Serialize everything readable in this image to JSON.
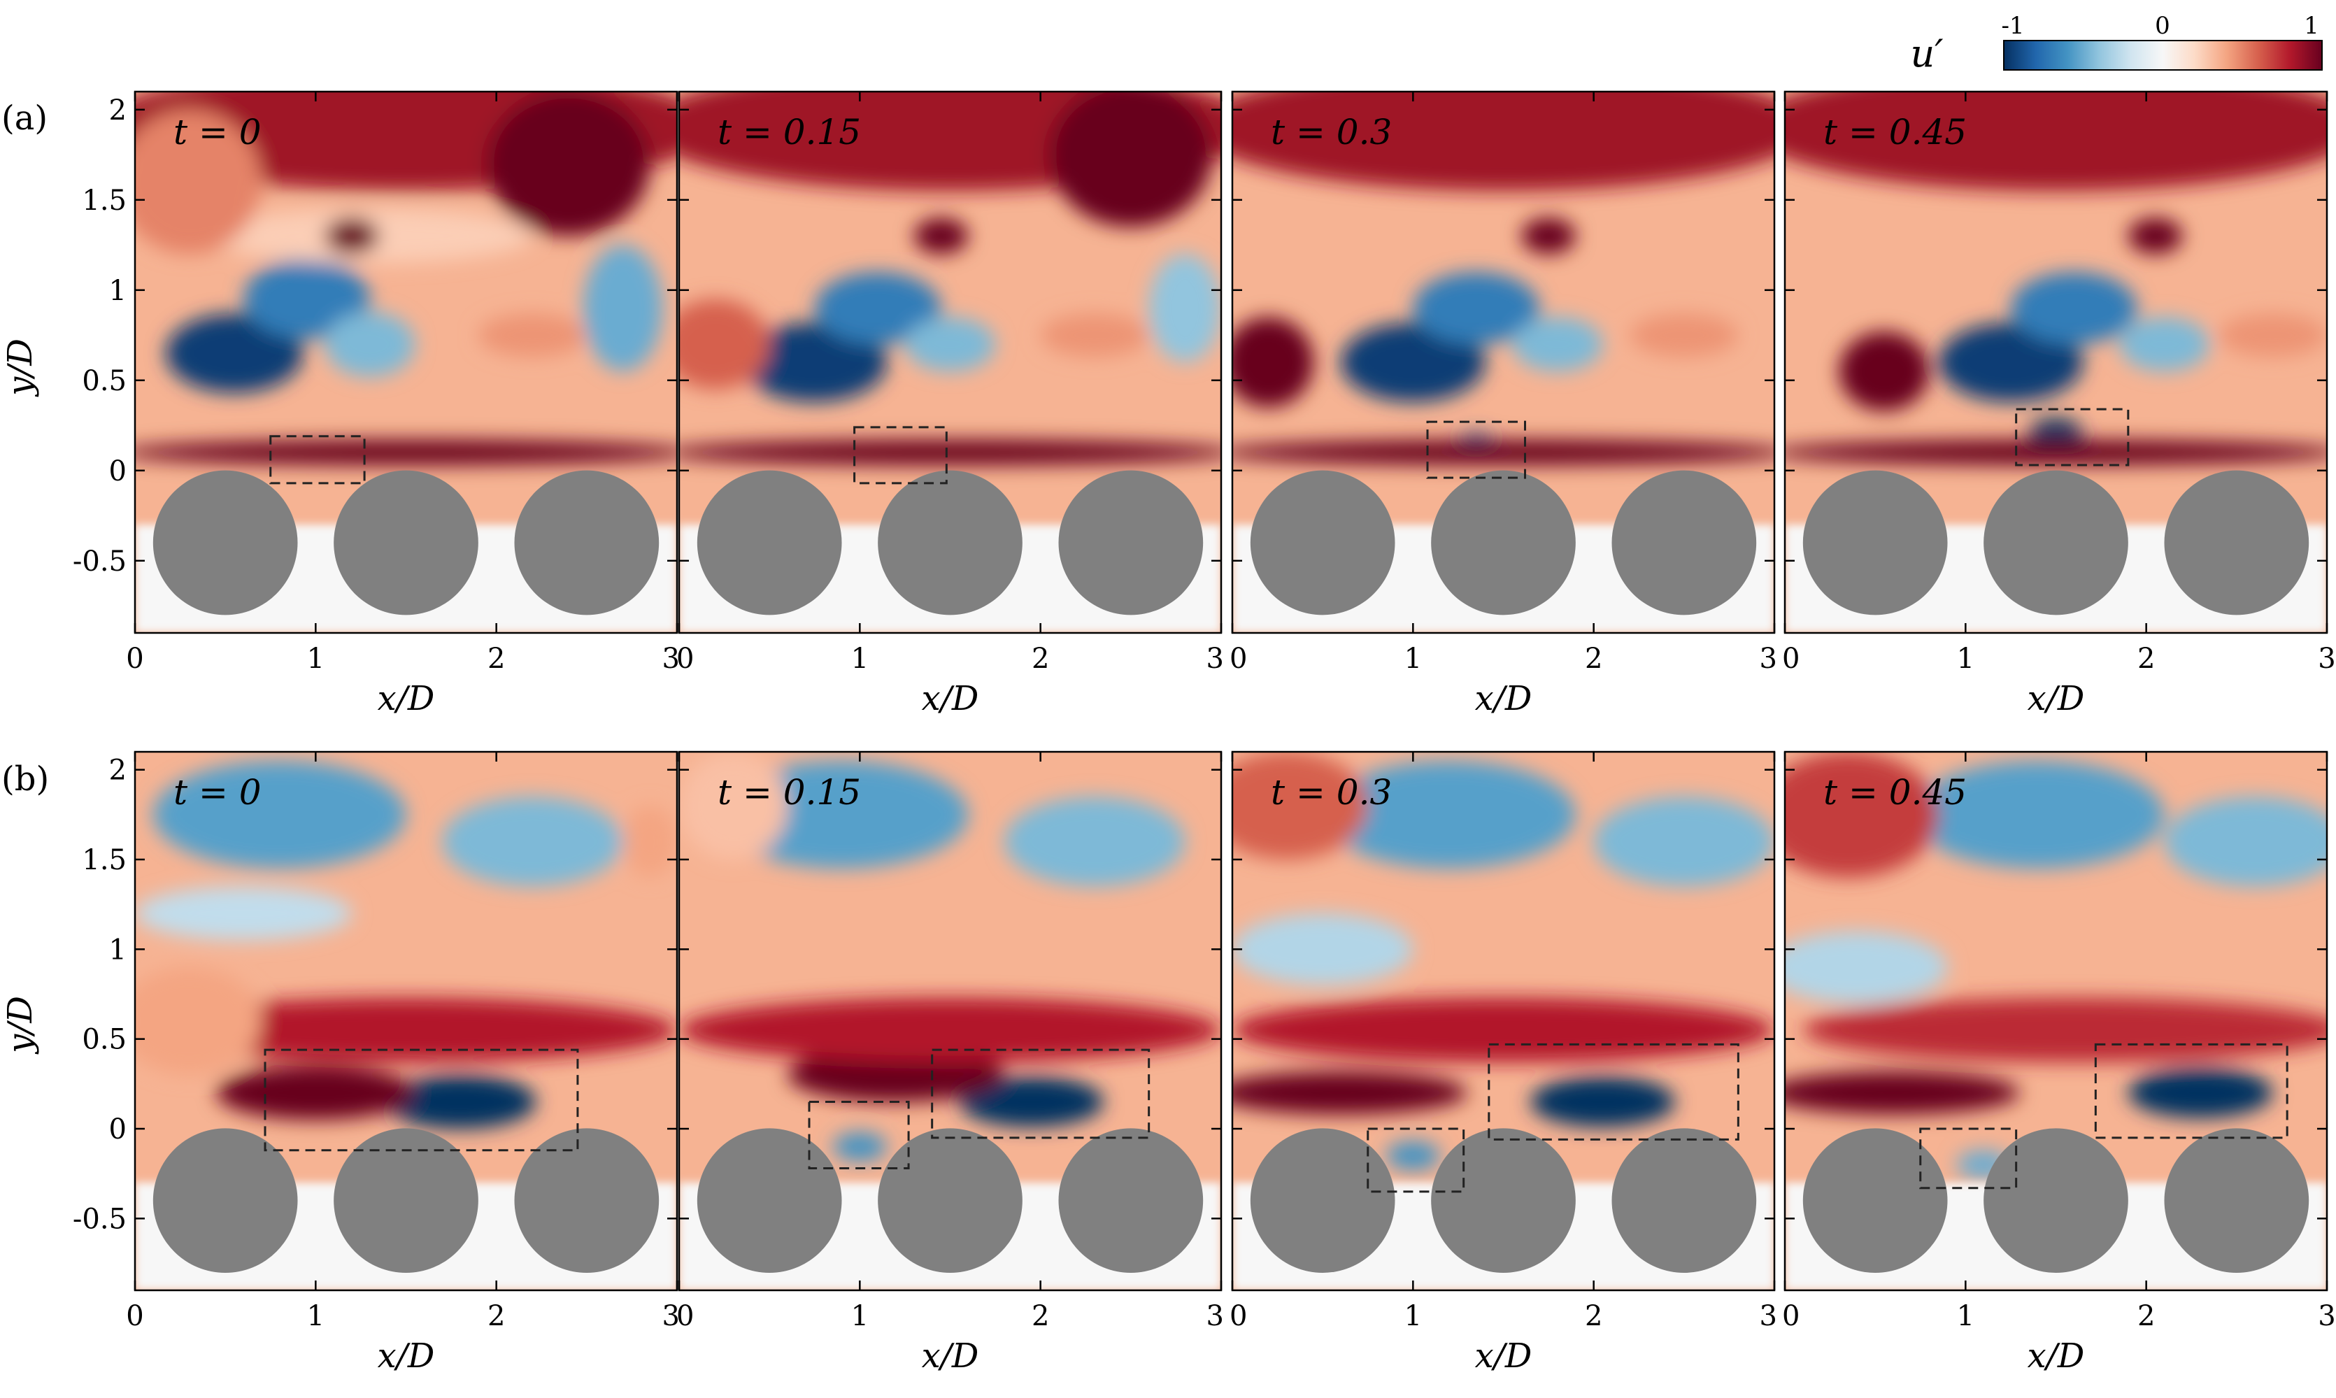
{
  "chart_data": {
    "type": "heatmap",
    "quantity_label": "u′",
    "colorbar": {
      "label": "u′",
      "range": [
        -1,
        1
      ],
      "ticks": [
        -1,
        0,
        1
      ],
      "tick_labels": [
        "-1",
        "0",
        "1"
      ],
      "colormap": [
        "#053061",
        "#2166ac",
        "#4393c3",
        "#92c5de",
        "#d1e5f0",
        "#f7f7f7",
        "#fddbc7",
        "#f4a582",
        "#d6604d",
        "#b2182b",
        "#67001f"
      ]
    },
    "x_axis": {
      "label": "x/D",
      "range": [
        0,
        3
      ],
      "ticks": [
        0,
        1,
        2,
        3
      ],
      "tick_labels": [
        "0",
        "1",
        "2",
        "3"
      ]
    },
    "y_axis": {
      "label": "y/D",
      "range": [
        -0.9,
        2.1
      ],
      "ticks": [
        -0.5,
        0,
        0.5,
        1,
        1.5,
        2
      ],
      "tick_labels": [
        "-0.5",
        "0",
        "0.5",
        "1",
        "1.5",
        "2"
      ]
    },
    "cylinders": {
      "centers_x": [
        0.5,
        1.5,
        2.5
      ],
      "center_y": -0.4,
      "radius": 0.4,
      "color": "#808080"
    },
    "rows": [
      {
        "label": "(a)",
        "panels": [
          {
            "time_label": "t = 0",
            "features": [
              {
                "x": 0.55,
                "y": 0.65,
                "rx": 0.38,
                "ry": 0.22,
                "u": -0.95
              },
              {
                "x": 0.95,
                "y": 0.95,
                "rx": 0.35,
                "ry": 0.22,
                "u": -0.7
              },
              {
                "x": 1.3,
                "y": 0.7,
                "rx": 0.25,
                "ry": 0.18,
                "u": -0.45
              },
              {
                "x": 2.7,
                "y": 0.9,
                "rx": 0.22,
                "ry": 0.35,
                "u": -0.5
              },
              {
                "x": 2.2,
                "y": 0.75,
                "rx": 0.3,
                "ry": 0.12,
                "u": 0.45
              },
              {
                "x": 1.3,
                "y": 1.3,
                "rx": 0.9,
                "ry": 0.15,
                "u": 0.25
              },
              {
                "x": 1.5,
                "y": 0.1,
                "rx": 1.6,
                "ry": 0.07,
                "u": 1.0
              },
              {
                "x": 1.5,
                "y": 1.9,
                "rx": 1.7,
                "ry": 0.35,
                "u": 0.85
              },
              {
                "x": 2.4,
                "y": 1.7,
                "rx": 0.45,
                "ry": 0.4,
                "u": 1.0
              },
              {
                "x": 1.2,
                "y": 1.3,
                "rx": 0.15,
                "ry": 0.1,
                "u": 1.0
              },
              {
                "x": 0.3,
                "y": 1.6,
                "rx": 0.4,
                "ry": 0.4,
                "u": 0.5
              }
            ],
            "box": {
              "x": [
                0.75,
                1.27
              ],
              "y": [
                -0.07,
                0.19
              ]
            }
          },
          {
            "time_label": "t = 0.15",
            "features": [
              {
                "x": 0.75,
                "y": 0.6,
                "rx": 0.4,
                "ry": 0.22,
                "u": -0.95
              },
              {
                "x": 1.1,
                "y": 0.9,
                "rx": 0.35,
                "ry": 0.2,
                "u": -0.7
              },
              {
                "x": 1.5,
                "y": 0.7,
                "rx": 0.25,
                "ry": 0.15,
                "u": -0.45
              },
              {
                "x": 2.8,
                "y": 0.9,
                "rx": 0.2,
                "ry": 0.3,
                "u": -0.4
              },
              {
                "x": 2.3,
                "y": 0.75,
                "rx": 0.3,
                "ry": 0.12,
                "u": 0.45
              },
              {
                "x": 1.5,
                "y": 0.1,
                "rx": 1.6,
                "ry": 0.07,
                "u": 1.0
              },
              {
                "x": 1.5,
                "y": 1.9,
                "rx": 1.7,
                "ry": 0.35,
                "u": 0.85
              },
              {
                "x": 2.5,
                "y": 1.75,
                "rx": 0.45,
                "ry": 0.4,
                "u": 1.0
              },
              {
                "x": 1.45,
                "y": 1.3,
                "rx": 0.15,
                "ry": 0.1,
                "u": 1.0
              },
              {
                "x": 0.2,
                "y": 0.7,
                "rx": 0.3,
                "ry": 0.25,
                "u": 0.6
              }
            ],
            "box": {
              "x": [
                0.97,
                1.48
              ],
              "y": [
                -0.07,
                0.24
              ]
            }
          },
          {
            "time_label": "t = 0.3",
            "features": [
              {
                "x": 1.0,
                "y": 0.6,
                "rx": 0.4,
                "ry": 0.22,
                "u": -0.95
              },
              {
                "x": 1.35,
                "y": 0.9,
                "rx": 0.35,
                "ry": 0.2,
                "u": -0.7
              },
              {
                "x": 1.35,
                "y": 0.12,
                "rx": 0.12,
                "ry": 0.09,
                "u": -0.9
              },
              {
                "x": 1.8,
                "y": 0.7,
                "rx": 0.25,
                "ry": 0.15,
                "u": -0.45
              },
              {
                "x": 2.5,
                "y": 0.75,
                "rx": 0.3,
                "ry": 0.12,
                "u": 0.45
              },
              {
                "x": 1.5,
                "y": 0.1,
                "rx": 1.6,
                "ry": 0.07,
                "u": 1.0
              },
              {
                "x": 1.5,
                "y": 1.9,
                "rx": 1.7,
                "ry": 0.35,
                "u": 0.85
              },
              {
                "x": 1.75,
                "y": 1.3,
                "rx": 0.15,
                "ry": 0.1,
                "u": 1.0
              },
              {
                "x": 0.2,
                "y": 0.6,
                "rx": 0.25,
                "ry": 0.25,
                "u": 1.0
              }
            ],
            "box": {
              "x": [
                1.08,
                1.62
              ],
              "y": [
                -0.04,
                0.27
              ]
            }
          },
          {
            "time_label": "t = 0.45",
            "features": [
              {
                "x": 1.25,
                "y": 0.6,
                "rx": 0.4,
                "ry": 0.22,
                "u": -0.95
              },
              {
                "x": 1.6,
                "y": 0.9,
                "rx": 0.35,
                "ry": 0.2,
                "u": -0.7
              },
              {
                "x": 1.5,
                "y": 0.2,
                "rx": 0.15,
                "ry": 0.09,
                "u": -1.0
              },
              {
                "x": 2.1,
                "y": 0.7,
                "rx": 0.25,
                "ry": 0.15,
                "u": -0.45
              },
              {
                "x": 2.7,
                "y": 0.75,
                "rx": 0.3,
                "ry": 0.12,
                "u": 0.45
              },
              {
                "x": 1.5,
                "y": 0.1,
                "rx": 1.6,
                "ry": 0.07,
                "u": 1.0
              },
              {
                "x": 1.5,
                "y": 1.9,
                "rx": 1.7,
                "ry": 0.35,
                "u": 0.85
              },
              {
                "x": 2.05,
                "y": 1.3,
                "rx": 0.15,
                "ry": 0.1,
                "u": 1.0
              },
              {
                "x": 0.55,
                "y": 0.55,
                "rx": 0.25,
                "ry": 0.22,
                "u": 1.0
              }
            ],
            "box": {
              "x": [
                1.28,
                1.9
              ],
              "y": [
                0.03,
                0.34
              ]
            }
          }
        ]
      },
      {
        "label": "(b)",
        "panels": [
          {
            "time_label": "t = 0",
            "features": [
              {
                "x": 0.8,
                "y": 1.75,
                "rx": 0.7,
                "ry": 0.3,
                "u": -0.55
              },
              {
                "x": 2.2,
                "y": 1.6,
                "rx": 0.5,
                "ry": 0.25,
                "u": -0.45
              },
              {
                "x": 0.6,
                "y": 1.2,
                "rx": 0.6,
                "ry": 0.15,
                "u": -0.25
              },
              {
                "x": 1.8,
                "y": 0.15,
                "rx": 0.42,
                "ry": 0.15,
                "u": -1.0
              },
              {
                "x": 1.0,
                "y": 0.2,
                "rx": 0.55,
                "ry": 0.15,
                "u": 1.0
              },
              {
                "x": 1.5,
                "y": 0.55,
                "rx": 1.5,
                "ry": 0.18,
                "u": 0.8
              },
              {
                "x": 2.85,
                "y": 1.6,
                "rx": 0.15,
                "ry": 0.2,
                "u": 0.4
              },
              {
                "x": 0.3,
                "y": 0.6,
                "rx": 0.4,
                "ry": 0.3,
                "u": 0.4
              }
            ],
            "boxes": [
              {
                "x": [
                  0.72,
                  2.45
                ],
                "y": [
                  -0.12,
                  0.44
                ]
              }
            ]
          },
          {
            "time_label": "t = 0.15",
            "features": [
              {
                "x": 0.9,
                "y": 1.75,
                "rx": 0.7,
                "ry": 0.3,
                "u": -0.55
              },
              {
                "x": 2.3,
                "y": 1.6,
                "rx": 0.5,
                "ry": 0.25,
                "u": -0.45
              },
              {
                "x": 1.0,
                "y": -0.1,
                "rx": 0.15,
                "ry": 0.08,
                "u": -0.6
              },
              {
                "x": 1.95,
                "y": 0.15,
                "rx": 0.4,
                "ry": 0.14,
                "u": -1.0
              },
              {
                "x": 1.2,
                "y": 0.3,
                "rx": 0.6,
                "ry": 0.15,
                "u": 1.0
              },
              {
                "x": 1.5,
                "y": 0.55,
                "rx": 1.5,
                "ry": 0.18,
                "u": 0.8
              },
              {
                "x": 0.3,
                "y": 1.8,
                "rx": 0.3,
                "ry": 0.3,
                "u": 0.3
              }
            ],
            "boxes": [
              {
                "x": [
                  0.72,
                  1.27
                ],
                "y": [
                  -0.22,
                  0.15
                ]
              },
              {
                "x": [
                  1.4,
                  2.6
                ],
                "y": [
                  -0.05,
                  0.44
                ]
              }
            ]
          },
          {
            "time_label": "t = 0.3",
            "features": [
              {
                "x": 1.2,
                "y": 1.75,
                "rx": 0.7,
                "ry": 0.3,
                "u": -0.55
              },
              {
                "x": 2.5,
                "y": 1.6,
                "rx": 0.5,
                "ry": 0.25,
                "u": -0.45
              },
              {
                "x": 1.0,
                "y": -0.15,
                "rx": 0.15,
                "ry": 0.08,
                "u": -0.6
              },
              {
                "x": 2.05,
                "y": 0.15,
                "rx": 0.4,
                "ry": 0.14,
                "u": -1.0
              },
              {
                "x": 0.6,
                "y": 0.2,
                "rx": 0.7,
                "ry": 0.12,
                "u": 1.0
              },
              {
                "x": 1.5,
                "y": 0.55,
                "rx": 1.5,
                "ry": 0.18,
                "u": 0.8
              },
              {
                "x": 0.3,
                "y": 1.8,
                "rx": 0.45,
                "ry": 0.3,
                "u": 0.6
              },
              {
                "x": 0.5,
                "y": 1.0,
                "rx": 0.5,
                "ry": 0.2,
                "u": -0.3
              }
            ],
            "boxes": [
              {
                "x": [
                  0.75,
                  1.28
                ],
                "y": [
                  -0.35,
                  0.0
                ]
              },
              {
                "x": [
                  1.42,
                  2.8
                ],
                "y": [
                  -0.06,
                  0.47
                ]
              }
            ]
          },
          {
            "time_label": "t = 0.45",
            "features": [
              {
                "x": 1.4,
                "y": 1.75,
                "rx": 0.7,
                "ry": 0.3,
                "u": -0.55
              },
              {
                "x": 2.6,
                "y": 1.6,
                "rx": 0.5,
                "ry": 0.25,
                "u": -0.45
              },
              {
                "x": 1.1,
                "y": -0.2,
                "rx": 0.15,
                "ry": 0.08,
                "u": -0.5
              },
              {
                "x": 2.3,
                "y": 0.2,
                "rx": 0.4,
                "ry": 0.14,
                "u": -1.0
              },
              {
                "x": 0.6,
                "y": 0.2,
                "rx": 0.7,
                "ry": 0.12,
                "u": 1.0
              },
              {
                "x": 1.6,
                "y": 0.55,
                "rx": 1.5,
                "ry": 0.18,
                "u": 0.75
              },
              {
                "x": 0.35,
                "y": 1.75,
                "rx": 0.5,
                "ry": 0.35,
                "u": 0.7
              },
              {
                "x": 0.4,
                "y": 0.9,
                "rx": 0.5,
                "ry": 0.2,
                "u": -0.3
              }
            ],
            "boxes": [
              {
                "x": [
                  0.75,
                  1.28
                ],
                "y": [
                  -0.33,
                  0.0
                ]
              },
              {
                "x": [
                  1.72,
                  2.78
                ],
                "y": [
                  -0.05,
                  0.47
                ]
              }
            ]
          }
        ]
      }
    ]
  }
}
